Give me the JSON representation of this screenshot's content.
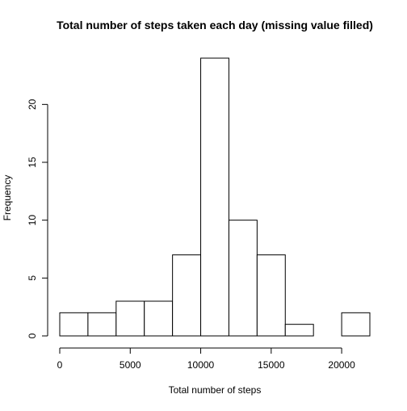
{
  "chart_data": {
    "type": "bar",
    "title": "Total number of steps taken each day (missing value filled)",
    "xlabel": "Total number of steps",
    "ylabel": "Frequency",
    "bins": [
      {
        "start": 0,
        "end": 2000,
        "count": 2
      },
      {
        "start": 2000,
        "end": 4000,
        "count": 2
      },
      {
        "start": 4000,
        "end": 6000,
        "count": 3
      },
      {
        "start": 6000,
        "end": 8000,
        "count": 3
      },
      {
        "start": 8000,
        "end": 10000,
        "count": 7
      },
      {
        "start": 10000,
        "end": 12000,
        "count": 24
      },
      {
        "start": 12000,
        "end": 14000,
        "count": 10
      },
      {
        "start": 14000,
        "end": 16000,
        "count": 7
      },
      {
        "start": 16000,
        "end": 18000,
        "count": 1
      },
      {
        "start": 18000,
        "end": 20000,
        "count": 0
      },
      {
        "start": 20000,
        "end": 22000,
        "count": 2
      }
    ],
    "x_ticks": [
      0,
      5000,
      10000,
      15000,
      20000
    ],
    "y_ticks": [
      0,
      5,
      10,
      15,
      20
    ],
    "xlim": [
      0,
      22000
    ],
    "ylim": [
      0,
      24
    ],
    "grid": false,
    "bar_fill": "#ffffff",
    "bar_stroke": "#000000"
  }
}
